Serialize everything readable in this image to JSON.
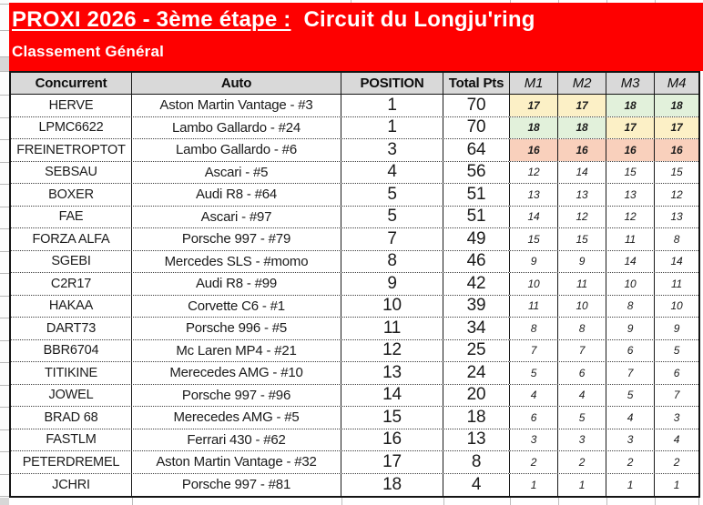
{
  "header": {
    "title_underlined": "PROXI 2026 - 3ème étape :",
    "title_rest": "Circuit du Longju'ring",
    "subtitle": "Classement Général"
  },
  "table": {
    "columns": [
      {
        "key": "concurrent",
        "label": "Concurrent"
      },
      {
        "key": "auto",
        "label": "Auto"
      },
      {
        "key": "position",
        "label": "POSITION"
      },
      {
        "key": "total-pts",
        "label": "Total Pts"
      },
      {
        "key": "m1",
        "label": "M1"
      },
      {
        "key": "m2",
        "label": "M2"
      },
      {
        "key": "m3",
        "label": "M3"
      },
      {
        "key": "m4",
        "label": "M4"
      }
    ],
    "rows": [
      {
        "concurrent": "HERVE",
        "auto": "Aston Martin Vantage - #3",
        "position": "1",
        "total_pts": "70",
        "m": [
          "17",
          "17",
          "18",
          "18"
        ],
        "m_fill": [
          "yellow",
          "yellow",
          "green",
          "green"
        ],
        "m_bold": true
      },
      {
        "concurrent": "LPMC6622",
        "auto": "Lambo Gallardo - #24",
        "position": "1",
        "total_pts": "70",
        "m": [
          "18",
          "18",
          "17",
          "17"
        ],
        "m_fill": [
          "green",
          "green",
          "yellow",
          "yellow"
        ],
        "m_bold": true
      },
      {
        "concurrent": "FREINETROPTOT",
        "auto": "Lambo Gallardo - #6",
        "position": "3",
        "total_pts": "64",
        "m": [
          "16",
          "16",
          "16",
          "16"
        ],
        "m_fill": [
          "salmon",
          "salmon",
          "salmon",
          "salmon"
        ],
        "m_bold": true
      },
      {
        "concurrent": "SEBSAU",
        "auto": "Ascari - #5",
        "position": "4",
        "total_pts": "56",
        "m": [
          "12",
          "14",
          "15",
          "15"
        ],
        "m_fill": [
          null,
          null,
          null,
          null
        ],
        "m_bold": false
      },
      {
        "concurrent": "BOXER",
        "auto": "Audi R8 - #64",
        "position": "5",
        "total_pts": "51",
        "m": [
          "13",
          "13",
          "13",
          "12"
        ],
        "m_fill": [
          null,
          null,
          null,
          null
        ],
        "m_bold": false
      },
      {
        "concurrent": "FAE",
        "auto": "Ascari - #97",
        "position": "5",
        "total_pts": "51",
        "m": [
          "14",
          "12",
          "12",
          "13"
        ],
        "m_fill": [
          null,
          null,
          null,
          null
        ],
        "m_bold": false
      },
      {
        "concurrent": "FORZA ALFA",
        "auto": "Porsche 997 - #79",
        "position": "7",
        "total_pts": "49",
        "m": [
          "15",
          "15",
          "11",
          "8"
        ],
        "m_fill": [
          null,
          null,
          null,
          null
        ],
        "m_bold": false
      },
      {
        "concurrent": "SGEBI",
        "auto": "Mercedes SLS - #momo",
        "position": "8",
        "total_pts": "46",
        "m": [
          "9",
          "9",
          "14",
          "14"
        ],
        "m_fill": [
          null,
          null,
          null,
          null
        ],
        "m_bold": false
      },
      {
        "concurrent": "C2R17",
        "auto": "Audi R8 - #99",
        "position": "9",
        "total_pts": "42",
        "m": [
          "10",
          "11",
          "10",
          "11"
        ],
        "m_fill": [
          null,
          null,
          null,
          null
        ],
        "m_bold": false
      },
      {
        "concurrent": "HAKAA",
        "auto": "Corvette C6 - #1",
        "position": "10",
        "total_pts": "39",
        "m": [
          "11",
          "10",
          "8",
          "10"
        ],
        "m_fill": [
          null,
          null,
          null,
          null
        ],
        "m_bold": false
      },
      {
        "concurrent": "DART73",
        "auto": "Porsche 996 - #5",
        "position": "11",
        "total_pts": "34",
        "m": [
          "8",
          "8",
          "9",
          "9"
        ],
        "m_fill": [
          null,
          null,
          null,
          null
        ],
        "m_bold": false
      },
      {
        "concurrent": "BBR6704",
        "auto": "Mc Laren MP4 - #21",
        "position": "12",
        "total_pts": "25",
        "m": [
          "7",
          "7",
          "6",
          "5"
        ],
        "m_fill": [
          null,
          null,
          null,
          null
        ],
        "m_bold": false
      },
      {
        "concurrent": "TITIKINE",
        "auto": "Merecedes AMG - #10",
        "position": "13",
        "total_pts": "24",
        "m": [
          "5",
          "6",
          "7",
          "6"
        ],
        "m_fill": [
          null,
          null,
          null,
          null
        ],
        "m_bold": false
      },
      {
        "concurrent": "JOWEL",
        "auto": "Porsche 997 - #96",
        "position": "14",
        "total_pts": "20",
        "m": [
          "4",
          "4",
          "5",
          "7"
        ],
        "m_fill": [
          null,
          null,
          null,
          null
        ],
        "m_bold": false
      },
      {
        "concurrent": "BRAD 68",
        "auto": "Merecedes AMG - #5",
        "position": "15",
        "total_pts": "18",
        "m": [
          "6",
          "5",
          "4",
          "3"
        ],
        "m_fill": [
          null,
          null,
          null,
          null
        ],
        "m_bold": false
      },
      {
        "concurrent": "FASTLM",
        "auto": "Ferrari 430 - #62",
        "position": "16",
        "total_pts": "13",
        "m": [
          "3",
          "3",
          "3",
          "4"
        ],
        "m_fill": [
          null,
          null,
          null,
          null
        ],
        "m_bold": false
      },
      {
        "concurrent": "PETERDREMEL",
        "auto": "Aston Martin Vantage - #32",
        "position": "17",
        "total_pts": "8",
        "m": [
          "2",
          "2",
          "2",
          "2"
        ],
        "m_fill": [
          null,
          null,
          null,
          null
        ],
        "m_bold": false
      },
      {
        "concurrent": "JCHRI",
        "auto": "Porsche 997 - #81",
        "position": "18",
        "total_pts": "4",
        "m": [
          "1",
          "1",
          "1",
          "1"
        ],
        "m_fill": [
          null,
          null,
          null,
          null
        ],
        "m_bold": false
      }
    ]
  },
  "colors": {
    "banner_red": "#FE0000",
    "header_fill": "#D9D9D9",
    "yellow": "#FCF0C6",
    "green": "#E2F1DB",
    "salmon": "#F9D0BC"
  }
}
